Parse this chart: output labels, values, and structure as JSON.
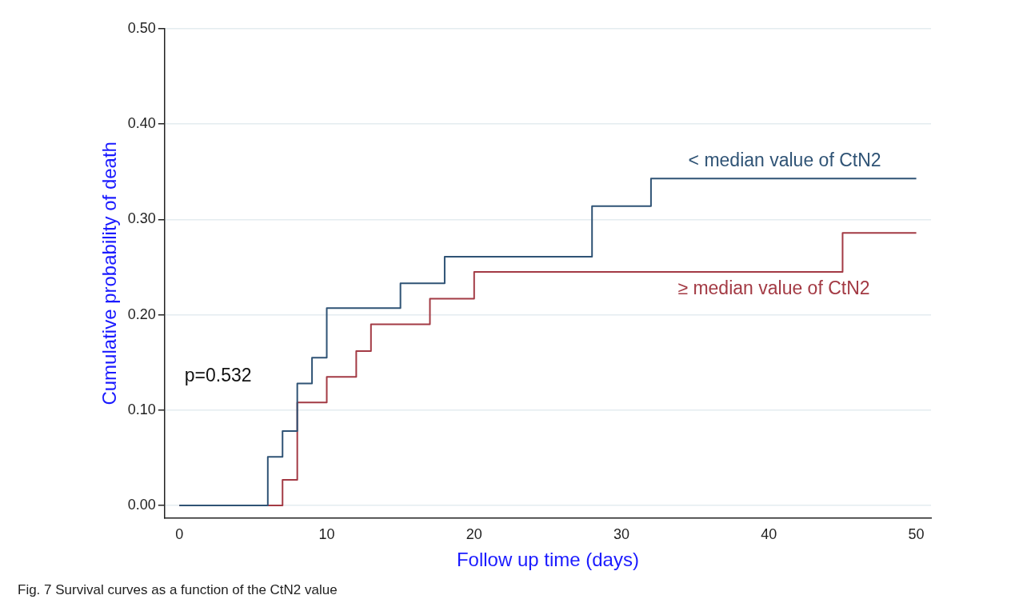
{
  "chart_data": {
    "type": "step",
    "xlabel": "Follow up time (days)",
    "ylabel": "Cumulative probability of death",
    "xlim": [
      -1,
      51
    ],
    "xticks": [
      0,
      10,
      20,
      30,
      40,
      50
    ],
    "ylim": [
      -0.013,
      0.5
    ],
    "yticks": [
      {
        "value": 0,
        "label": "0.00"
      },
      {
        "value": 0.1,
        "label": "0.10"
      },
      {
        "value": 0.2,
        "label": "0.20"
      },
      {
        "value": 0.3,
        "label": "0.30"
      },
      {
        "value": 0.4,
        "label": "0.40"
      },
      {
        "value": 0.5,
        "label": "0.50"
      }
    ],
    "grid": "y",
    "legend": false,
    "marker": "none",
    "line_style": "solid",
    "series": [
      {
        "name": "< median value of CtN2",
        "color": "#2f5375",
        "x": [
          0,
          6,
          7,
          8,
          9,
          10,
          15,
          18,
          28,
          32,
          50
        ],
        "values": [
          0,
          0.051,
          0.078,
          0.128,
          0.155,
          0.207,
          0.233,
          0.261,
          0.314,
          0.343,
          0.343
        ]
      },
      {
        "name": "≥ median value of CtN2",
        "color": "#a33a44",
        "x": [
          0,
          7,
          8,
          10,
          12,
          13,
          17,
          20,
          45,
          50
        ],
        "values": [
          0,
          0.027,
          0.108,
          0.135,
          0.162,
          0.19,
          0.217,
          0.245,
          0.286,
          0.286
        ]
      }
    ],
    "annotations": [
      "p=0.532",
      "Fig. 7 Survival curves as a function of the CtN2 value"
    ]
  }
}
